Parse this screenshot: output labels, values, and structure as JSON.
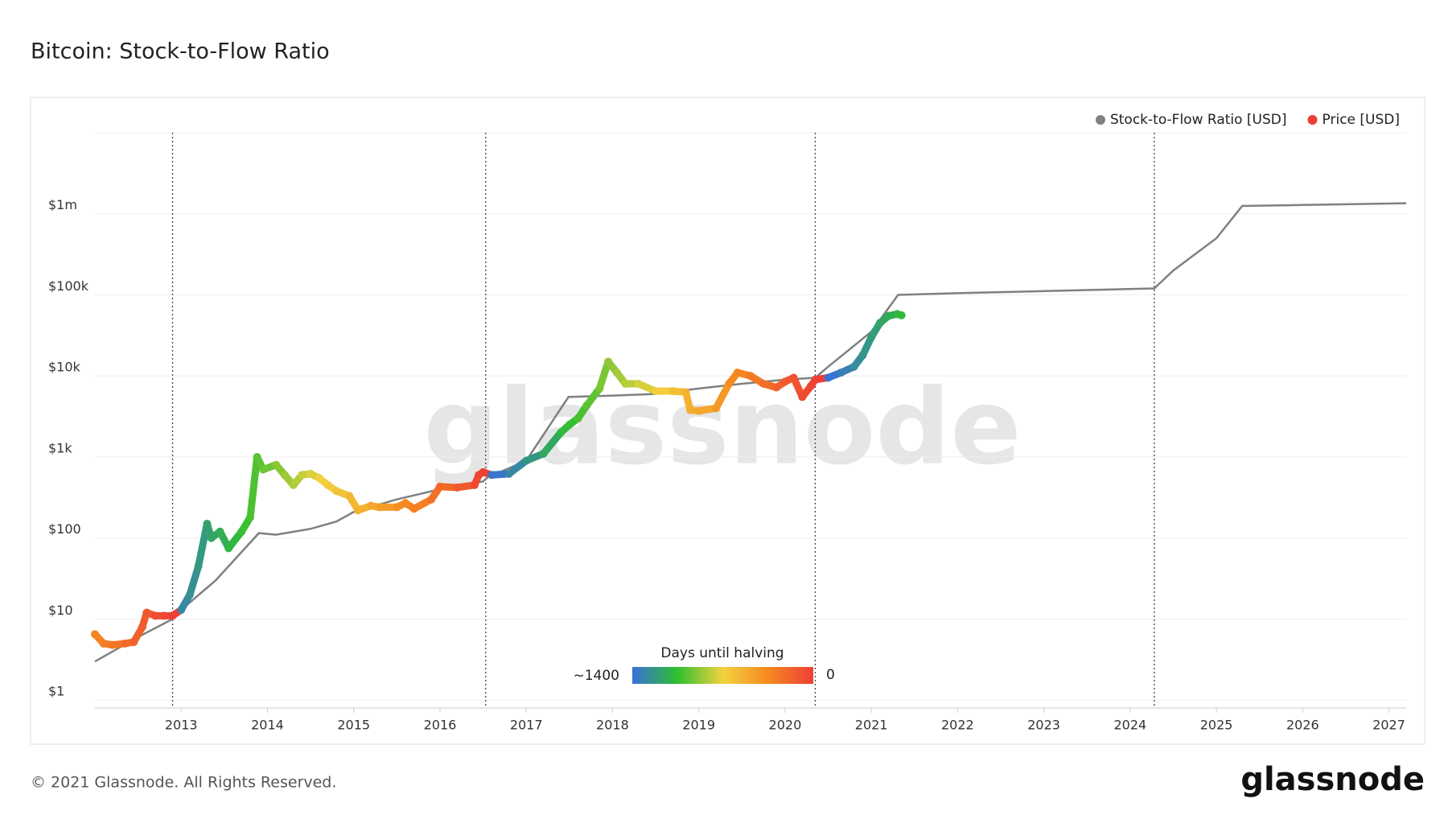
{
  "chart_data": {
    "type": "scatter-line",
    "title": "Bitcoin: Stock-to-Flow Ratio",
    "footer": "© 2021 Glassnode. All Rights Reserved.",
    "brand": "glassnode",
    "watermark": "glassnode",
    "log_y": true,
    "grid": true,
    "legend": "top-right",
    "xlim": [
      2012.0,
      2027.2
    ],
    "xticks": [
      2013,
      2014,
      2015,
      2016,
      2017,
      2018,
      2019,
      2020,
      2021,
      2022,
      2023,
      2024,
      2025,
      2026,
      2027
    ],
    "ylim": [
      0.8,
      10000000
    ],
    "yticks": [
      {
        "value": 1,
        "label": "$1"
      },
      {
        "value": 10,
        "label": "$10"
      },
      {
        "value": 100,
        "label": "$100"
      },
      {
        "value": 1000,
        "label": "$1k"
      },
      {
        "value": 10000,
        "label": "$10k"
      },
      {
        "value": 100000,
        "label": "$100k"
      },
      {
        "value": 1000000,
        "label": "$1m"
      }
    ],
    "halvings": [
      2012.9,
      2016.53,
      2020.35,
      2024.28
    ],
    "colorbar": {
      "title": "Days until halving",
      "min_label": "~1400",
      "max_label": "0",
      "max_days": 1400,
      "colors": [
        "#3a6fd8",
        "#2fbf2f",
        "#f3d23f",
        "#f5891f",
        "#ee3f36"
      ]
    },
    "series": [
      {
        "name": "Stock-to-Flow Ratio [USD]",
        "color": "#808080",
        "kind": "line",
        "x": [
          2012.0,
          2012.5,
          2012.9,
          2013.0,
          2013.4,
          2013.9,
          2014.1,
          2014.5,
          2014.8,
          2015.0,
          2015.5,
          2016.0,
          2016.5,
          2016.55,
          2017.0,
          2017.49,
          2018.0,
          2018.5,
          2019.0,
          2019.5,
          2020.0,
          2020.35,
          2020.5,
          2021.0,
          2021.31,
          2022.0,
          2024.28,
          2024.5,
          2025.0,
          2025.3,
          2027.2
        ],
        "values": [
          3,
          6,
          10,
          13,
          30,
          115,
          110,
          130,
          160,
          210,
          300,
          400,
          500,
          560,
          900,
          5500,
          5700,
          6000,
          7000,
          8000,
          9000,
          9500,
          13000,
          35000,
          100000,
          105000,
          120000,
          200000,
          500000,
          1250000,
          1350000
        ]
      },
      {
        "name": "Price [USD]",
        "color": "#ee3f36",
        "kind": "dots",
        "x": [
          2012.0,
          2012.1,
          2012.2,
          2012.35,
          2012.45,
          2012.55,
          2012.6,
          2012.7,
          2012.8,
          2012.9,
          2013.0,
          2013.1,
          2013.2,
          2013.3,
          2013.35,
          2013.45,
          2013.55,
          2013.7,
          2013.8,
          2013.88,
          2013.95,
          2014.1,
          2014.2,
          2014.3,
          2014.4,
          2014.5,
          2014.6,
          2014.7,
          2014.8,
          2014.95,
          2015.05,
          2015.2,
          2015.3,
          2015.5,
          2015.6,
          2015.7,
          2015.9,
          2016.0,
          2016.2,
          2016.4,
          2016.45,
          2016.5,
          2016.6,
          2016.8,
          2017.0,
          2017.2,
          2017.4,
          2017.5,
          2017.6,
          2017.7,
          2017.85,
          2017.95,
          2018.05,
          2018.15,
          2018.3,
          2018.5,
          2018.7,
          2018.85,
          2018.9,
          2019.0,
          2019.2,
          2019.35,
          2019.45,
          2019.6,
          2019.75,
          2019.9,
          2020.0,
          2020.1,
          2020.2,
          2020.3,
          2020.35,
          2020.5,
          2020.65,
          2020.8,
          2020.9,
          2021.0,
          2021.1,
          2021.2,
          2021.3,
          2021.35
        ],
        "values": [
          6.5,
          5,
          4.8,
          5,
          5.2,
          8,
          12,
          11,
          11,
          11,
          13,
          20,
          45,
          150,
          100,
          120,
          75,
          120,
          180,
          1000,
          700,
          800,
          600,
          450,
          600,
          620,
          550,
          450,
          380,
          330,
          220,
          250,
          240,
          240,
          270,
          230,
          300,
          430,
          420,
          450,
          600,
          650,
          600,
          620,
          900,
          1100,
          2000,
          2500,
          3000,
          4300,
          7000,
          15000,
          11000,
          8000,
          8000,
          6500,
          6500,
          6300,
          3800,
          3700,
          4000,
          8000,
          11000,
          10000,
          8000,
          7200,
          8500,
          9500,
          5500,
          7500,
          9000,
          9500,
          11000,
          13000,
          18000,
          30000,
          45000,
          55000,
          58000,
          56000
        ]
      }
    ]
  }
}
